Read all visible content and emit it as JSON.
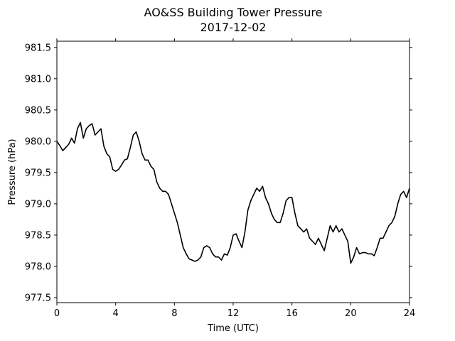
{
  "chart_data": {
    "type": "line",
    "title": "AO&SS Building Tower Pressure",
    "subtitle": "2017-12-02",
    "xlabel": "Time (UTC)",
    "ylabel": "Pressure (hPa)",
    "xlim": [
      0,
      24
    ],
    "ylim": [
      977.42,
      981.6
    ],
    "xticks": [
      0,
      4,
      8,
      12,
      16,
      20,
      24
    ],
    "yticks": [
      977.5,
      978.0,
      978.5,
      979.0,
      979.5,
      980.0,
      980.5,
      981.0,
      981.5
    ],
    "ytick_labels": [
      "977.5",
      "978.0",
      "978.5",
      "979.0",
      "979.5",
      "980.0",
      "980.5",
      "981.0",
      "981.5"
    ],
    "grid": false,
    "line_color": "#000000",
    "series": [
      {
        "x": [
          0.0,
          0.2,
          0.4,
          0.6,
          0.8,
          1.0,
          1.2,
          1.4,
          1.6,
          1.8,
          2.0,
          2.2,
          2.4,
          2.6,
          2.8,
          3.0,
          3.2,
          3.4,
          3.6,
          3.8,
          4.0,
          4.2,
          4.4,
          4.6,
          4.8,
          5.0,
          5.2,
          5.4,
          5.6,
          5.8,
          6.0,
          6.2,
          6.4,
          6.6,
          6.8,
          7.0,
          7.2,
          7.4,
          7.6,
          7.8,
          8.0,
          8.2,
          8.4,
          8.6,
          8.8,
          9.0,
          9.2,
          9.4,
          9.6,
          9.8,
          10.0,
          10.2,
          10.4,
          10.6,
          10.8,
          11.0,
          11.2,
          11.4,
          11.6,
          11.8,
          12.0,
          12.2,
          12.4,
          12.6,
          12.8,
          13.0,
          13.2,
          13.4,
          13.6,
          13.8,
          14.0,
          14.2,
          14.4,
          14.6,
          14.8,
          15.0,
          15.2,
          15.4,
          15.6,
          15.8,
          16.0,
          16.2,
          16.4,
          16.6,
          16.8,
          17.0,
          17.2,
          17.4,
          17.6,
          17.8,
          18.0,
          18.2,
          18.4,
          18.6,
          18.8,
          19.0,
          19.2,
          19.4,
          19.6,
          19.8,
          20.0,
          20.2,
          20.4,
          20.6,
          20.8,
          21.0,
          21.2,
          21.4,
          21.6,
          21.8,
          22.0,
          22.2,
          22.4,
          22.6,
          22.8,
          23.0,
          23.2,
          23.4,
          23.6,
          23.8,
          24.0
        ],
        "values": [
          980.0,
          979.93,
          979.85,
          979.9,
          979.95,
          980.05,
          979.97,
          980.2,
          980.3,
          980.05,
          980.2,
          980.25,
          980.28,
          980.1,
          980.15,
          980.2,
          979.92,
          979.8,
          979.75,
          979.55,
          979.52,
          979.55,
          979.62,
          979.7,
          979.72,
          979.9,
          980.1,
          980.15,
          980.0,
          979.8,
          979.7,
          979.7,
          979.6,
          979.55,
          979.35,
          979.25,
          979.2,
          979.2,
          979.15,
          979.0,
          978.85,
          978.7,
          978.5,
          978.3,
          978.2,
          978.12,
          978.1,
          978.08,
          978.1,
          978.15,
          978.3,
          978.33,
          978.3,
          978.2,
          978.15,
          978.15,
          978.1,
          978.2,
          978.18,
          978.3,
          978.5,
          978.52,
          978.4,
          978.3,
          978.55,
          978.9,
          979.05,
          979.15,
          979.25,
          979.2,
          979.28,
          979.1,
          979.0,
          978.85,
          978.75,
          978.7,
          978.7,
          978.85,
          979.05,
          979.1,
          979.1,
          978.85,
          978.65,
          978.6,
          978.55,
          978.6,
          978.45,
          978.4,
          978.35,
          978.45,
          978.35,
          978.25,
          978.45,
          978.65,
          978.55,
          978.65,
          978.55,
          978.6,
          978.5,
          978.4,
          978.05,
          978.15,
          978.3,
          978.2,
          978.22,
          978.22,
          978.2,
          978.2,
          978.17,
          978.3,
          978.45,
          978.45,
          978.55,
          978.65,
          978.7,
          978.8,
          979.0,
          979.15,
          979.2,
          979.1,
          979.25
        ]
      }
    ]
  }
}
